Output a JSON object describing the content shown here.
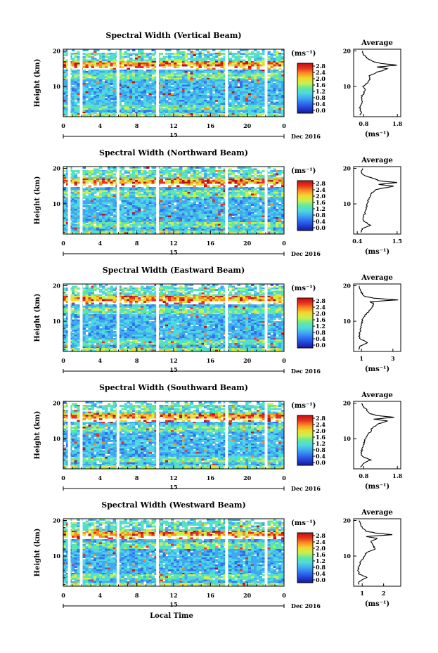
{
  "chart_data": [
    {
      "type": "heatmap",
      "title": "Spectral Width (Vertical Beam)",
      "ylabel": "Height (km)",
      "yticks": [
        "20",
        "10"
      ],
      "xticks": [
        "0",
        "4",
        "8",
        "12",
        "16",
        "20",
        "0"
      ],
      "xlim": [
        0,
        24
      ],
      "ylim": [
        1.5,
        20.5
      ],
      "date_day": "15",
      "date_month": "Dec 2016",
      "colorbar": {
        "unit": "(ms⁻¹)",
        "ticks": [
          "2.8",
          "2.4",
          "2.0",
          "1.6",
          "1.2",
          "0.8",
          "0.4",
          "0.0"
        ]
      },
      "gaps": [
        [
          0.5,
          0.8
        ],
        [
          1.8,
          2.1
        ],
        [
          5.8,
          6.1
        ],
        [
          10.1,
          10.4
        ],
        [
          17.6,
          17.9
        ],
        [
          21.9,
          22.2
        ]
      ],
      "average": {
        "title": "Average",
        "xlabel": "(ms⁻¹)",
        "xticks": [
          "0.8",
          "1.8"
        ],
        "yticks": [
          "20",
          "10"
        ],
        "xlim": [
          0.5,
          1.9
        ],
        "heights": [
          2,
          3,
          4,
          5,
          6,
          7,
          8,
          9,
          10,
          11,
          12,
          13,
          14,
          15,
          15.5,
          16,
          16.5,
          17,
          18,
          19,
          20
        ],
        "values": [
          0.7,
          0.72,
          0.68,
          0.73,
          0.76,
          0.72,
          0.8,
          0.84,
          0.78,
          0.9,
          1.0,
          0.95,
          1.2,
          1.5,
          1.2,
          1.8,
          1.3,
          1.1,
          0.9,
          0.8,
          0.75
        ]
      }
    },
    {
      "type": "heatmap",
      "title": "Spectral Width (Northward Beam)",
      "ylabel": "Height (km)",
      "yticks": [
        "20",
        "10"
      ],
      "xticks": [
        "0",
        "4",
        "8",
        "12",
        "16",
        "20",
        "0"
      ],
      "xlim": [
        0,
        24
      ],
      "ylim": [
        1.5,
        20.5
      ],
      "date_day": "15",
      "date_month": "Dec 2016",
      "colorbar": {
        "unit": "(ms⁻¹)",
        "ticks": [
          "2.8",
          "2.4",
          "2.0",
          "1.6",
          "1.2",
          "0.8",
          "0.4",
          "0.0"
        ]
      },
      "gaps": [
        [
          0.5,
          0.8
        ],
        [
          1.8,
          2.1
        ],
        [
          5.8,
          6.1
        ],
        [
          10.1,
          10.4
        ],
        [
          17.6,
          17.9
        ],
        [
          21.9,
          22.2
        ]
      ],
      "average": {
        "title": "Average",
        "xlabel": "(ms⁻¹)",
        "xticks": [
          "0.4",
          "1.5"
        ],
        "yticks": [
          "20",
          "10"
        ],
        "xlim": [
          0.3,
          1.6
        ],
        "heights": [
          2,
          3,
          4,
          5,
          6,
          7,
          8,
          9,
          10,
          11,
          12,
          13,
          14,
          15,
          15.5,
          16,
          16.5,
          17,
          18,
          19,
          20
        ],
        "values": [
          0.5,
          0.55,
          0.75,
          0.6,
          0.55,
          0.6,
          0.62,
          0.65,
          0.68,
          0.7,
          0.75,
          0.8,
          0.9,
          1.4,
          1.0,
          1.5,
          1.0,
          0.9,
          0.6,
          0.5,
          0.55
        ]
      }
    },
    {
      "type": "heatmap",
      "title": "Spectral Width (Eastward Beam)",
      "ylabel": "Height (km)",
      "yticks": [
        "20",
        "10"
      ],
      "xticks": [
        "0",
        "4",
        "8",
        "12",
        "16",
        "20",
        "0"
      ],
      "xlim": [
        0,
        24
      ],
      "ylim": [
        1.5,
        20.5
      ],
      "date_day": "15",
      "date_month": "Dec 2016",
      "colorbar": {
        "unit": "(ms⁻¹)",
        "ticks": [
          "2.8",
          "2.4",
          "2.0",
          "1.6",
          "1.2",
          "0.8",
          "0.4",
          "0.0"
        ]
      },
      "gaps": [
        [
          0.5,
          0.8
        ],
        [
          1.8,
          2.1
        ],
        [
          5.8,
          6.1
        ],
        [
          10.1,
          10.4
        ],
        [
          17.6,
          17.9
        ],
        [
          21.9,
          22.2
        ]
      ],
      "average": {
        "title": "Average",
        "xlabel": "(ms⁻¹)",
        "xticks": [
          "1",
          "3"
        ],
        "yticks": [
          "20",
          "10"
        ],
        "xlim": [
          0.5,
          3.5
        ],
        "heights": [
          2,
          3,
          4,
          5,
          6,
          7,
          8,
          9,
          10,
          11,
          12,
          13,
          14,
          15,
          15.5,
          16,
          16.5,
          17,
          18,
          19,
          20
        ],
        "values": [
          0.8,
          0.9,
          1.4,
          0.9,
          0.85,
          0.9,
          0.95,
          1.0,
          1.05,
          1.1,
          1.3,
          1.5,
          1.7,
          1.8,
          1.5,
          3.3,
          1.8,
          1.2,
          1.0,
          0.9,
          0.85
        ]
      }
    },
    {
      "type": "heatmap",
      "title": "Spectral Width (Southward Beam)",
      "ylabel": "Height (km)",
      "yticks": [
        "20",
        "10"
      ],
      "xticks": [
        "0",
        "4",
        "8",
        "12",
        "16",
        "20",
        "0"
      ],
      "xlim": [
        0,
        24
      ],
      "ylim": [
        1.5,
        20.5
      ],
      "date_day": "15",
      "date_month": "Dec 2016",
      "colorbar": {
        "unit": "(ms⁻¹)",
        "ticks": [
          "2.8",
          "2.4",
          "2.0",
          "1.6",
          "1.2",
          "0.8",
          "0.4",
          "0.0"
        ]
      },
      "gaps": [
        [
          0.5,
          0.8
        ],
        [
          1.8,
          2.1
        ],
        [
          5.8,
          6.1
        ],
        [
          10.1,
          10.4
        ],
        [
          17.6,
          17.9
        ],
        [
          21.9,
          22.2
        ]
      ],
      "average": {
        "title": "Average",
        "xlabel": "(ms⁻¹)",
        "xticks": [
          "0.8",
          "1.8"
        ],
        "yticks": [
          "20",
          "10"
        ],
        "xlim": [
          0.5,
          1.9
        ],
        "heights": [
          2,
          3,
          4,
          5,
          6,
          7,
          8,
          9,
          10,
          11,
          12,
          13,
          14,
          15,
          15.5,
          16,
          16.5,
          17,
          18,
          19,
          20
        ],
        "values": [
          0.7,
          0.8,
          1.0,
          0.75,
          0.72,
          0.75,
          0.78,
          0.82,
          0.85,
          0.9,
          1.0,
          1.05,
          1.2,
          1.5,
          1.1,
          1.7,
          1.2,
          1.0,
          0.9,
          0.8,
          0.75
        ]
      }
    },
    {
      "type": "heatmap",
      "title": "Spectral Width (Westward Beam)",
      "ylabel": "Height (km)",
      "yticks": [
        "20",
        "10"
      ],
      "xticks": [
        "0",
        "4",
        "8",
        "12",
        "16",
        "20",
        "0"
      ],
      "xlim": [
        0,
        24
      ],
      "ylim": [
        1.5,
        20.5
      ],
      "date_day": "15",
      "date_month": "Dec 2016",
      "colorbar": {
        "unit": "(ms⁻¹)",
        "ticks": [
          "2.8",
          "2.4",
          "2.0",
          "1.6",
          "1.2",
          "0.8",
          "0.4",
          "0.0"
        ]
      },
      "gaps": [
        [
          0.5,
          0.8
        ],
        [
          1.8,
          2.1
        ],
        [
          5.8,
          6.1
        ],
        [
          10.1,
          10.4
        ],
        [
          17.6,
          17.9
        ],
        [
          21.9,
          22.2
        ]
      ],
      "average": {
        "title": "Average",
        "xlabel": "(ms⁻¹)",
        "xticks": [
          "1",
          "2"
        ],
        "yticks": [
          "20",
          "10"
        ],
        "xlim": [
          0.6,
          2.8
        ],
        "heights": [
          2,
          3,
          4,
          5,
          6,
          7,
          8,
          9,
          10,
          11,
          12,
          13,
          14,
          15,
          15.5,
          16,
          16.5,
          17,
          18,
          19,
          20
        ],
        "values": [
          0.8,
          0.9,
          1.2,
          0.85,
          0.82,
          0.85,
          0.9,
          1.0,
          1.1,
          1.2,
          1.6,
          1.5,
          1.4,
          1.7,
          1.2,
          2.4,
          1.6,
          1.2,
          1.0,
          0.9,
          0.85
        ]
      }
    }
  ],
  "xaxis_label": "Local Time",
  "palette": [
    "#1a1a8c",
    "#2040d8",
    "#3070f0",
    "#40a8f0",
    "#50d8e0",
    "#60e8a0",
    "#c8f050",
    "#f0d830",
    "#f89020",
    "#e83020",
    "#c01010"
  ]
}
